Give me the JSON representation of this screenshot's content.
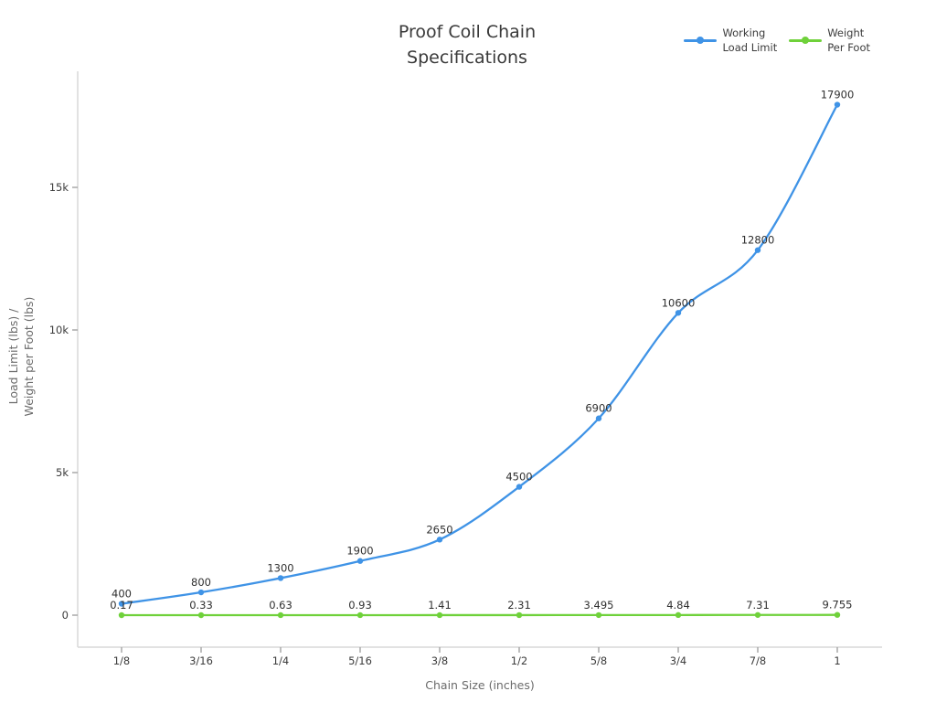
{
  "page": {
    "background": "#ffffff"
  },
  "title": {
    "text": "Proof Coil Chain\nSpecifications"
  },
  "legend": {
    "items": [
      {
        "label": "Working\nLoad Limit",
        "color": "#3f93e6"
      },
      {
        "label": "Weight\nPer Foot",
        "color": "#6fd13a"
      }
    ]
  },
  "chart_data": {
    "type": "line",
    "title": "Proof Coil Chain Specifications",
    "xlabel": "Chain Size (inches)",
    "ylabel": "Load Limit (lbs) /\nWeight per Foot (lbs)",
    "categories": [
      "1/8",
      "3/16",
      "1/4",
      "5/16",
      "3/8",
      "1/2",
      "5/8",
      "3/4",
      "7/8",
      "1"
    ],
    "series": [
      {
        "name": "Working Load Limit",
        "color": "#3f93e6",
        "marker": "circle",
        "values": [
          400,
          800,
          1300,
          1900,
          2650,
          4500,
          6900,
          10600,
          12800,
          17900
        ]
      },
      {
        "name": "Weight Per Foot",
        "color": "#6fd13a",
        "marker": "circle",
        "values": [
          0.17,
          0.33,
          0.63,
          0.93,
          1.41,
          2.31,
          3.495,
          4.84,
          7.31,
          9.755
        ]
      }
    ],
    "y_ticks": [
      {
        "value": 0,
        "label": "0"
      },
      {
        "value": 5000,
        "label": "5k"
      },
      {
        "value": 10000,
        "label": "10k"
      },
      {
        "value": 15000,
        "label": "15k"
      }
    ],
    "ylim": [
      0,
      18800
    ],
    "grid": false,
    "legend_position": "top-right",
    "data_labels": true,
    "axis_color": "#d9d9d9",
    "tick_color": "#a8a8a8",
    "tick_label_color": "#3c3c3c",
    "data_label_color": "#2f2f2f"
  }
}
